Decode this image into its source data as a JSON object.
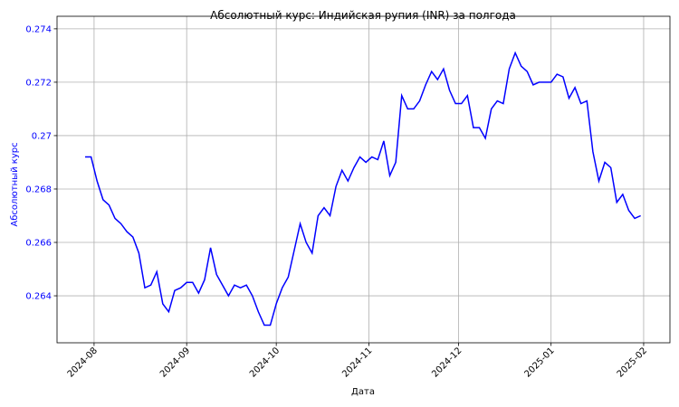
{
  "chart_data": {
    "type": "line",
    "title": "Абсолютный курс: Индийская рупия (INR) за полгода",
    "x_label": "Дата",
    "y_label": "Абсолютный курс",
    "color": "#0000ff",
    "y_label_color": "#0000ff",
    "grid": true,
    "values": [
      0.2692,
      0.2692,
      0.2683,
      0.2676,
      0.2674,
      0.2669,
      0.2667,
      0.2664,
      0.2662,
      0.2656,
      0.2643,
      0.2644,
      0.2649,
      0.2637,
      0.2634,
      0.2642,
      0.2643,
      0.2645,
      0.2645,
      0.2641,
      0.2646,
      0.2658,
      0.2648,
      0.2644,
      0.264,
      0.2644,
      0.2643,
      0.2644,
      0.264,
      0.2634,
      0.2629,
      0.2629,
      0.2637,
      0.2643,
      0.2647,
      0.2657,
      0.2667,
      0.266,
      0.2656,
      0.267,
      0.2673,
      0.267,
      0.2681,
      0.2687,
      0.2683,
      0.2688,
      0.2692,
      0.269,
      0.2692,
      0.2691,
      0.2698,
      0.2685,
      0.269,
      0.2715,
      0.271,
      0.271,
      0.2713,
      0.2719,
      0.2724,
      0.2721,
      0.2725,
      0.2717,
      0.2712,
      0.2712,
      0.2715,
      0.2703,
      0.2703,
      0.2699,
      0.271,
      0.2713,
      0.2712,
      0.2725,
      0.2731,
      0.2726,
      0.2724,
      0.2719,
      0.272,
      0.272,
      0.272,
      0.2723,
      0.2722,
      0.2714,
      0.2718,
      0.2712,
      0.2713,
      0.2694,
      0.2683,
      0.269,
      0.2688,
      0.2675,
      0.2678,
      0.2672,
      0.2669,
      0.267
    ],
    "xlim": [
      -4.7,
      97.9
    ],
    "xticks": [
      {
        "value": 1.5,
        "label": "2024-08"
      },
      {
        "value": 17,
        "label": "2024-09"
      },
      {
        "value": 32,
        "label": "2024-10"
      },
      {
        "value": 47.5,
        "label": "2024-11"
      },
      {
        "value": 62.5,
        "label": "2024-12"
      },
      {
        "value": 78,
        "label": "2025-01"
      },
      {
        "value": 93.5,
        "label": "2025-02"
      }
    ],
    "ylim": [
      0.26224,
      0.27447
    ],
    "yticks": [
      0.264,
      0.266,
      0.268,
      0.27,
      0.272,
      0.274
    ]
  }
}
